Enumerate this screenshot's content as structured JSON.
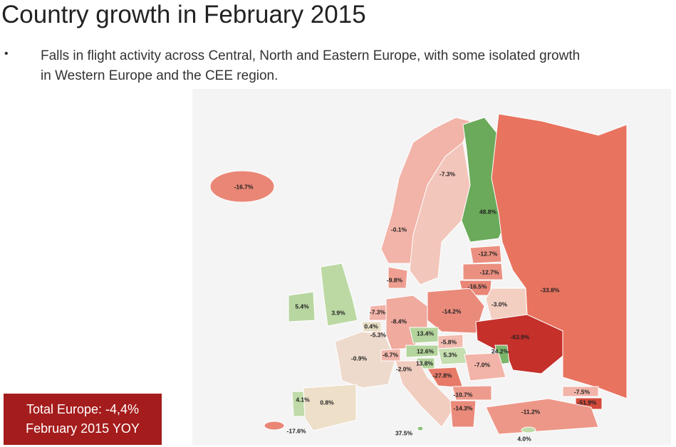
{
  "header": {
    "title": "Country growth in February 2015",
    "bullet": "•",
    "lines": [
      "Falls in flight activity across Central, North and Eastern Europe, with some isolated growth",
      "in Western Europe and the CEE region."
    ]
  },
  "map": {
    "regions": [
      {
        "label": "-16.7%",
        "color": "#e98676"
      },
      {
        "label": "-7.3%",
        "color": "#f2b3a8"
      },
      {
        "label": "-0.1%",
        "color": "#f3c6bb"
      },
      {
        "label": "48.8%",
        "color": "#6aaa5a"
      },
      {
        "label": "-12.7%",
        "color": "#eb8f80"
      },
      {
        "label": "-12.7%",
        "color": "#eb8f80"
      },
      {
        "label": "-16.5%",
        "color": "#e98676"
      },
      {
        "label": "-33.8%",
        "color": "#e8735f"
      },
      {
        "label": "-9.8%",
        "color": "#ef9f92"
      },
      {
        "label": "5.4%",
        "color": "#b8d6a0"
      },
      {
        "label": "3.9%",
        "color": "#bcd9a4"
      },
      {
        "label": "-7.3%",
        "color": "#f2b3a8"
      },
      {
        "label": "-8.4%",
        "color": "#f0aa9e"
      },
      {
        "label": "-14.2%",
        "color": "#ea8a7b"
      },
      {
        "label": "-3.0%",
        "color": "#f3cfc2"
      },
      {
        "label": "0.4%",
        "color": "#e6ddc4"
      },
      {
        "label": "-5.3%",
        "color": "#f2bcb0"
      },
      {
        "label": "13.4%",
        "color": "#b3d49c"
      },
      {
        "label": "-5.8%",
        "color": "#f2bcb0"
      },
      {
        "label": "-63.9%",
        "color": "#c5302b"
      },
      {
        "label": "-0.9%",
        "color": "#eedacc"
      },
      {
        "label": "-6.7%",
        "color": "#f2b6aa"
      },
      {
        "label": "12.6%",
        "color": "#b3d49c"
      },
      {
        "label": "5.3%",
        "color": "#c5dfb0"
      },
      {
        "label": "24.2%",
        "color": "#7bb56a"
      },
      {
        "label": "13.8%",
        "color": "#b3d49c"
      },
      {
        "label": "-2.0%",
        "color": "#f1cdc0"
      },
      {
        "label": "-27.8%",
        "color": "#e77a68"
      },
      {
        "label": "-7.0%",
        "color": "#f2b4a8"
      },
      {
        "label": "4.1%",
        "color": "#c0dba9"
      },
      {
        "label": "0.8%",
        "color": "#eddfc8"
      },
      {
        "label": "-10.7%",
        "color": "#ed9b8c"
      },
      {
        "label": "-14.3%",
        "color": "#ea8a7b"
      },
      {
        "label": "-7.5%",
        "color": "#f2b3a8"
      },
      {
        "label": "-51.9%",
        "color": "#d44a3a"
      },
      {
        "label": "-11.2%",
        "color": "#ed9788"
      },
      {
        "label": "-17.6%",
        "color": "#e98676"
      },
      {
        "label": "37.5%",
        "color": "#8ec07c"
      },
      {
        "label": "4.0%",
        "color": "#c0dba9"
      }
    ]
  },
  "summary": {
    "lines": [
      "Total Europe: -4,4%",
      "February 2015 YOY"
    ]
  }
}
